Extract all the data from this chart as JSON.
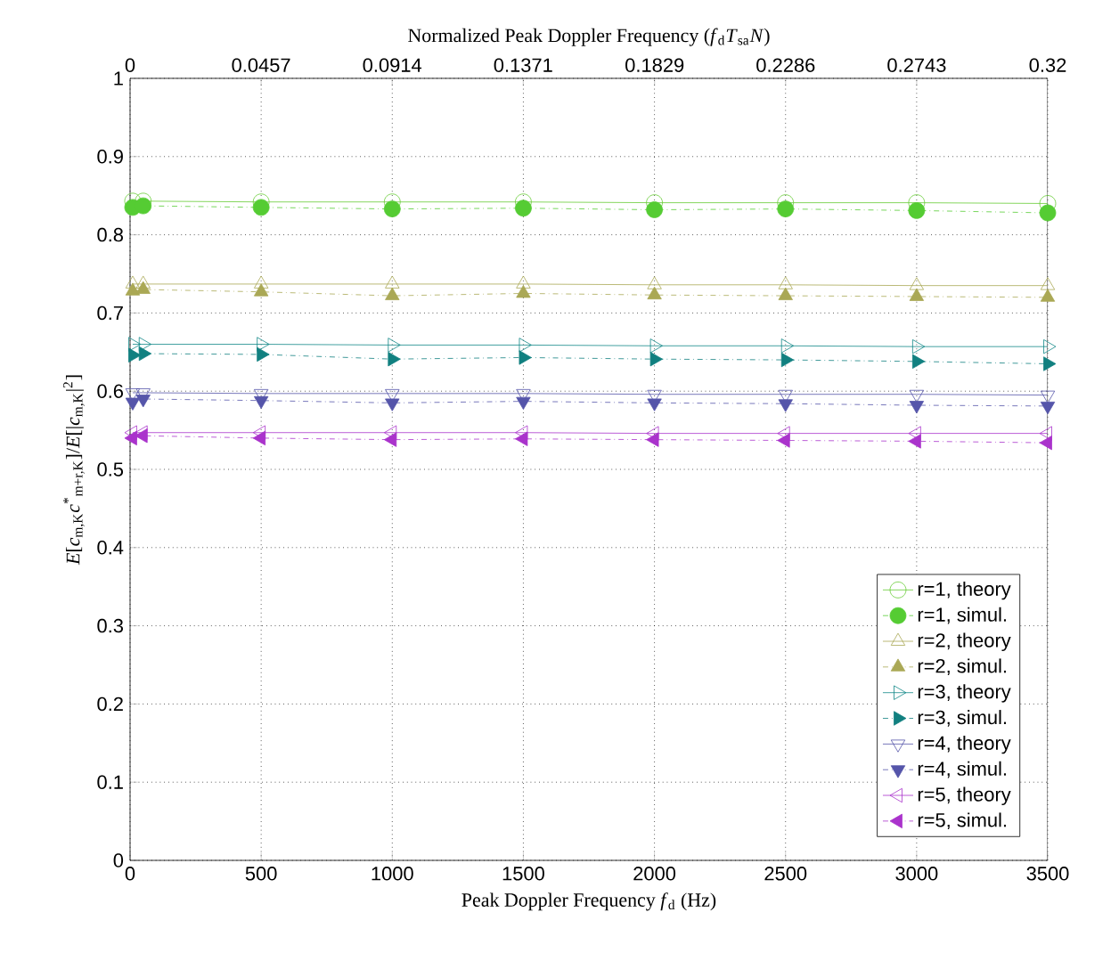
{
  "chart_data": {
    "type": "line",
    "xlabel": "Peak Doppler Frequency *f*$_{d}$ (Hz)",
    "x2label": "Normalized Peak Doppler Frequency (*f*$_{d}$*T*$_{sa}$*N*)",
    "ylabel": "*E*[*c*$_{m,K}$*c*$^{*}$$_{m+r,K}$]/*E*[|*c*$_{m,K}$|$^{2}$]",
    "x": [
      10,
      50,
      500,
      1000,
      1500,
      2000,
      2500,
      3000,
      3500
    ],
    "xlim": [
      0,
      3500
    ],
    "xticks": [
      0,
      500,
      1000,
      1500,
      2000,
      2500,
      3000,
      3500
    ],
    "x2lim": [
      0,
      0.32
    ],
    "x2ticks": [
      0,
      0.0457,
      0.0914,
      0.1371,
      0.1829,
      0.2286,
      0.2743,
      0.32
    ],
    "ylim": [
      0,
      1
    ],
    "yticks": [
      0,
      0.1,
      0.2,
      0.3,
      0.4,
      0.5,
      0.6,
      0.7,
      0.8,
      0.9,
      1
    ],
    "grid": true,
    "legend": "bottom right",
    "series": [
      {
        "name": "r=1, theory",
        "color": "#66cc33",
        "marker": "circle",
        "line_style": "solid",
        "values": [
          0.843,
          0.843,
          0.842,
          0.842,
          0.842,
          0.841,
          0.841,
          0.841,
          0.84
        ]
      },
      {
        "name": "r=1, simul.",
        "color": "#55cc33",
        "marker": "circle",
        "line_style": "dashed",
        "values": [
          0.835,
          0.837,
          0.835,
          0.833,
          0.834,
          0.832,
          0.833,
          0.831,
          0.828
        ]
      },
      {
        "name": "r=2, theory",
        "color": "#aaa855",
        "marker": "triangle",
        "line_style": "solid",
        "values": [
          0.737,
          0.737,
          0.737,
          0.737,
          0.737,
          0.736,
          0.736,
          0.735,
          0.735
        ]
      },
      {
        "name": "r=2, simul.",
        "color": "#aaa855",
        "marker": "triangle",
        "line_style": "dashed",
        "values": [
          0.728,
          0.73,
          0.727,
          0.722,
          0.725,
          0.723,
          0.722,
          0.721,
          0.72
        ]
      },
      {
        "name": "r=3, theory",
        "color": "#118888",
        "marker": "triangle",
        "line_style": "solid",
        "values": [
          0.66,
          0.66,
          0.66,
          0.659,
          0.659,
          0.658,
          0.658,
          0.657,
          0.657
        ]
      },
      {
        "name": "r=3, simul.",
        "color": "#118080",
        "marker": "triangle",
        "line_style": "dashed",
        "values": [
          0.646,
          0.648,
          0.647,
          0.641,
          0.643,
          0.641,
          0.64,
          0.638,
          0.635
        ]
      },
      {
        "name": "r=4, theory",
        "color": "#5555aa",
        "marker": "triangle",
        "line_style": "solid",
        "values": [
          0.598,
          0.598,
          0.597,
          0.597,
          0.597,
          0.596,
          0.596,
          0.596,
          0.595
        ]
      },
      {
        "name": "r=4, simul.",
        "color": "#5555aa",
        "marker": "triangle",
        "line_style": "dashed",
        "values": [
          0.586,
          0.59,
          0.588,
          0.585,
          0.587,
          0.585,
          0.584,
          0.582,
          0.581
        ]
      },
      {
        "name": "r=5, theory",
        "color": "#aa33cc",
        "marker": "triangle",
        "line_style": "solid",
        "values": [
          0.547,
          0.547,
          0.547,
          0.547,
          0.547,
          0.546,
          0.546,
          0.546,
          0.546
        ]
      },
      {
        "name": "r=5, simul.",
        "color": "#aa33cc",
        "marker": "triangle",
        "line_style": "dashed",
        "values": [
          0.54,
          0.543,
          0.54,
          0.538,
          0.539,
          0.538,
          0.537,
          0.536,
          0.534
        ]
      }
    ]
  }
}
